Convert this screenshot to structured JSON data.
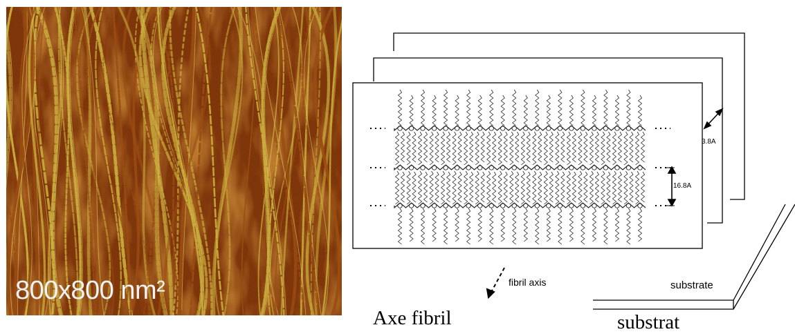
{
  "afm_image": {
    "scale_label": "800x800 nm²",
    "colors": {
      "dark": "#7a2e0c",
      "mid": "#9b4a16",
      "bright": "#d6c24a",
      "highlight": "#ecdf72"
    }
  },
  "schematic": {
    "layer_spacing_label": "3.8A",
    "chain_spacing_label": "16.8A",
    "fibril_axis_label": "fibril axis",
    "substrate_label": "substrate"
  },
  "captions": {
    "fibril_axis_fr": "Axe fibril",
    "substrate_fr": "substrat"
  }
}
